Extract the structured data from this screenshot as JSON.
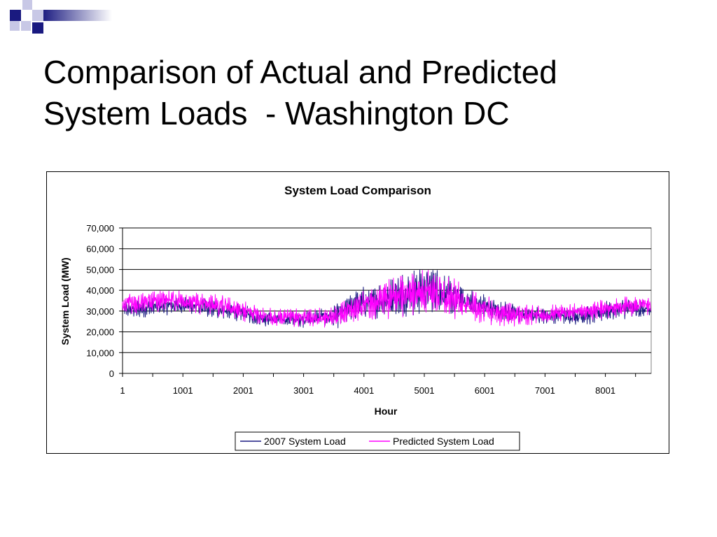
{
  "slide": {
    "title_lines": [
      "Comparison of Actual and Predicted",
      "System Loads  - Washington DC"
    ]
  },
  "colors": {
    "actual": "#1a1a80",
    "predicted": "#ff00ff",
    "deco_dark": "#1a1a80",
    "deco_light": "#c8c8e6",
    "deco_bar_start": "#1a1a80",
    "deco_bar_end": "#ffffff"
  },
  "chart_data": {
    "type": "line",
    "title": "System Load Comparison",
    "xlabel": "Hour",
    "ylabel": "System Load (MW)",
    "xlim": [
      1,
      8760
    ],
    "ylim": [
      0,
      70000
    ],
    "ytick_step": 10000,
    "yticks": [
      "0",
      "10,000",
      "20,000",
      "30,000",
      "40,000",
      "50,000",
      "60,000",
      "70,000"
    ],
    "xtick_labels": [
      "1",
      "1001",
      "2001",
      "3001",
      "4001",
      "5001",
      "6001",
      "7001",
      "8001"
    ],
    "xtick_values": [
      1,
      1001,
      2001,
      3001,
      4001,
      5001,
      6001,
      7001,
      8001
    ],
    "grid": "horizontal",
    "legend_position": "bottom",
    "series": [
      {
        "name": "2007 System Load",
        "x": [
          1,
          251,
          501,
          751,
          1001,
          1251,
          1501,
          1751,
          2001,
          2251,
          2501,
          2751,
          3001,
          3251,
          3501,
          3651,
          3801,
          4001,
          4251,
          4501,
          4751,
          5001,
          5151,
          5251,
          5501,
          5751,
          6001,
          6251,
          6501,
          6751,
          7001,
          7251,
          7501,
          7751,
          8001,
          8251,
          8501,
          8760
        ],
        "y": [
          31000,
          31000,
          32000,
          32500,
          33000,
          32000,
          31000,
          30000,
          29000,
          27000,
          26000,
          26000,
          26000,
          27000,
          27000,
          29000,
          33000,
          34000,
          35000,
          37000,
          39000,
          40000,
          41000,
          39000,
          37000,
          34000,
          32000,
          30000,
          29000,
          28000,
          28000,
          28000,
          27500,
          28000,
          30000,
          31000,
          31000,
          30000
        ],
        "amplitude": [
          5000,
          5000,
          5000,
          5000,
          5000,
          5000,
          5000,
          5000,
          4500,
          4500,
          4500,
          4500,
          4500,
          5000,
          6000,
          8000,
          8000,
          9000,
          10000,
          11000,
          13000,
          13000,
          13000,
          12000,
          10000,
          8000,
          7000,
          6000,
          5000,
          4500,
          4500,
          4500,
          4500,
          5000,
          5500,
          5500,
          5500,
          5000
        ]
      },
      {
        "name": "Predicted System Load",
        "x": [
          1,
          251,
          501,
          751,
          1001,
          1251,
          1501,
          1751,
          2001,
          2251,
          2501,
          2751,
          3001,
          3251,
          3501,
          3651,
          3801,
          4001,
          4251,
          4501,
          4751,
          5001,
          5151,
          5251,
          5501,
          5751,
          6001,
          6251,
          6501,
          6751,
          7001,
          7251,
          7501,
          7751,
          8001,
          8251,
          8501,
          8760
        ],
        "y": [
          33000,
          34000,
          35000,
          35000,
          35000,
          34000,
          33000,
          32000,
          30000,
          28000,
          27000,
          27000,
          27000,
          27000,
          27000,
          28000,
          31000,
          33000,
          35000,
          37000,
          38000,
          39000,
          40000,
          38000,
          36000,
          33000,
          31000,
          29000,
          28000,
          28000,
          28500,
          29000,
          29500,
          30000,
          31000,
          32000,
          32500,
          32000
        ],
        "amplitude": [
          6000,
          6000,
          6000,
          6000,
          6000,
          6000,
          6000,
          5500,
          5500,
          5000,
          5000,
          5000,
          5000,
          5000,
          6000,
          7000,
          8000,
          9000,
          11000,
          12000,
          12000,
          12000,
          12000,
          12000,
          11000,
          9000,
          8000,
          7000,
          6000,
          5500,
          5000,
          5000,
          5000,
          5000,
          5500,
          5500,
          5500,
          5500
        ]
      }
    ]
  }
}
